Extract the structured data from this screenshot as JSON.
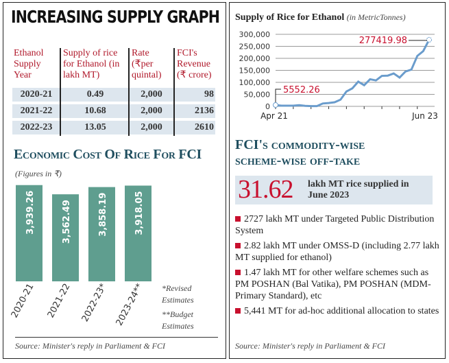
{
  "left": {
    "title": "INCREASING SUPPLY GRAPH",
    "table": {
      "headers": [
        "Ethanol Supply Year",
        "Supply of rice for Ethanol (in lakh MT)",
        "Rate (₹per quintal)",
        "FCI's Revenue (₹ crore)"
      ],
      "rows": [
        [
          "2020-21",
          "0.49",
          "2,000",
          "98"
        ],
        [
          "2021-22",
          "10.68",
          "2,000",
          "2136"
        ],
        [
          "2022-23",
          "13.05",
          "2,000",
          "2610"
        ]
      ]
    },
    "note_revised": "*Revised Estimates",
    "note_budget": "**Budget Estimates",
    "source": "Source: Minister's reply in Parliament & FCI"
  },
  "right": {
    "offtake_title_1": "FCI's commodity-wise",
    "offtake_title_2": "scheme-wise off-take",
    "highlight_number": "31.62",
    "highlight_text": "lakh MT rice supplied in June 2023",
    "bullets": [
      "2727 lakh MT under Targeted Public Distribution System",
      "2.82 lakh MT under OMSS-D (including 2.77 lakh MT supplied for ethanol)",
      "1.47 lakh MT for other welfare schemes such as PM POSHAN (Bal Vatika), PM POSHAN (MDM-Primary Standard), etc",
      "5,441 MT for ad-hoc additional allocation to states"
    ],
    "source": "Source: Minister's reply in Parliament & FCI"
  },
  "colors": {
    "red": "#c8102e",
    "teal": "#5f9e8f",
    "line": "#6a9ccc",
    "title_teal": "#1f4e5f"
  },
  "chart_data": [
    {
      "type": "line",
      "title": "Supply of Rice for Ethanol",
      "subtitle": "(in MetricTonnes)",
      "x_start_label": "Apr 21",
      "x_end_label": "Jun 23",
      "yticks": [
        "300,000",
        "250,000",
        "200,000",
        "150,000",
        "100,000",
        "50,000",
        "0"
      ],
      "ylim": [
        0,
        300000
      ],
      "values": [
        5552.26,
        3000,
        3000,
        3000,
        5000,
        2000,
        1000,
        1000,
        12000,
        14000,
        17000,
        28000,
        62000,
        75000,
        103000,
        88000,
        113000,
        108000,
        127000,
        128000,
        137000,
        120000,
        145000,
        153000,
        210000,
        230000,
        277419.98
      ],
      "annotations": [
        "5552.26",
        "277419.98"
      ],
      "grid": true
    },
    {
      "type": "bar",
      "title": "Economic Cost Of Rice For FCI",
      "subtitle": "(Figures in ₹)",
      "categories": [
        "2020-21",
        "2021-22",
        "2022-23*",
        "2023-24**"
      ],
      "values": [
        3939.26,
        3562.49,
        3858.19,
        3918.05
      ],
      "labels": [
        "3,939.26",
        "3,562.49",
        "3,858.19",
        "3,918.05"
      ],
      "ylim": [
        0,
        4100
      ]
    }
  ]
}
